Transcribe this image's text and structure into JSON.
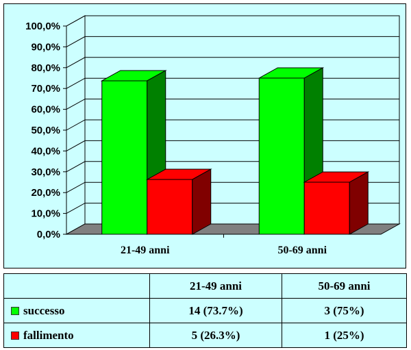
{
  "chart_data": {
    "type": "bar",
    "title": "",
    "xlabel": "",
    "ylabel": "",
    "categories": [
      "21-49 anni",
      "50-69 anni"
    ],
    "series": [
      {
        "name": "successo",
        "values": [
          73.7,
          75.0
        ],
        "color": "#00ff00"
      },
      {
        "name": "fallimento",
        "values": [
          26.3,
          25.0
        ],
        "color": "#ff0000"
      }
    ],
    "ylim": [
      0,
      100
    ],
    "yticks": [
      0,
      10,
      20,
      30,
      40,
      50,
      60,
      70,
      80,
      90,
      100
    ],
    "ytick_labels": [
      "0,0%",
      "10,0%",
      "20,0%",
      "30,0%",
      "40,0%",
      "50,0%",
      "60,0%",
      "70,0%",
      "80,0%",
      "90,0%",
      "100,0%"
    ],
    "grid": true,
    "style": "3d-clustered-column",
    "background": "#ccffff"
  },
  "table": {
    "headers": [
      "",
      "21-49 anni",
      "50-69 anni"
    ],
    "rows": [
      {
        "series": "successo",
        "color": "#00ff00",
        "values": [
          "14 (73.7%)",
          "3 (75%)"
        ]
      },
      {
        "series": "fallimento",
        "color": "#ff0000",
        "values": [
          "5 (26.3%)",
          "1 (25%)"
        ]
      }
    ]
  }
}
